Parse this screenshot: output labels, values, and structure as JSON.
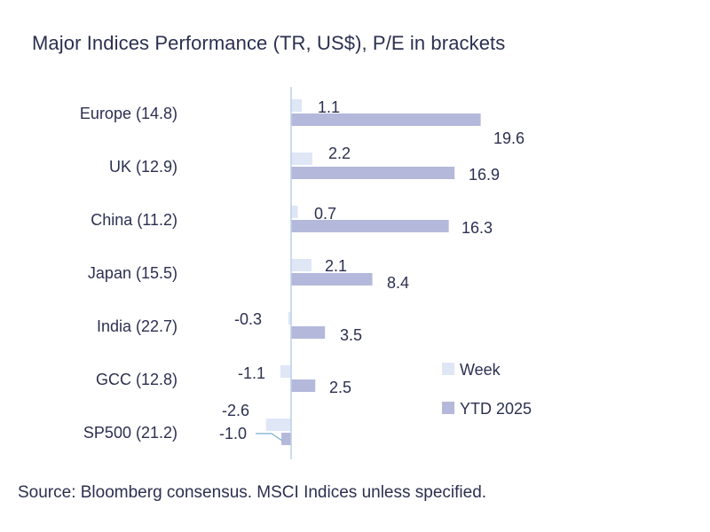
{
  "title": "Major Indices Performance (TR, US$), P/E in brackets",
  "source": "Source: Bloomberg consensus. MSCI Indices unless specified.",
  "colors": {
    "week": "#dfe6f6",
    "ytd": "#b4b8db",
    "axis": "#bcd0ea",
    "leader": "#7aaecb"
  },
  "chart_data": {
    "type": "bar",
    "orientation": "horizontal",
    "title": "Major Indices Performance (TR, US$), P/E in brackets",
    "categories": [
      "Europe (14.8)",
      "UK (12.9)",
      "China (11.2)",
      "Japan (15.5)",
      "India (22.7)",
      "GCC (12.8)",
      "SP500 (21.2)"
    ],
    "series": [
      {
        "name": "Week",
        "values": [
          1.1,
          2.2,
          0.7,
          2.1,
          -0.3,
          -1.1,
          -2.6
        ],
        "labels": [
          "1.1",
          "2.2",
          "0.7",
          "2.1",
          "-0.3",
          "-1.1",
          "-2.6"
        ]
      },
      {
        "name": "YTD 2025",
        "values": [
          19.6,
          16.9,
          16.3,
          8.4,
          3.5,
          2.5,
          -1.0
        ],
        "labels": [
          "19.6",
          "16.9",
          "16.3",
          "8.4",
          "3.5",
          "2.5",
          "-1.0"
        ]
      }
    ],
    "legend": "right",
    "grid": false,
    "xlim": [
      -2.6,
      19.6
    ]
  }
}
